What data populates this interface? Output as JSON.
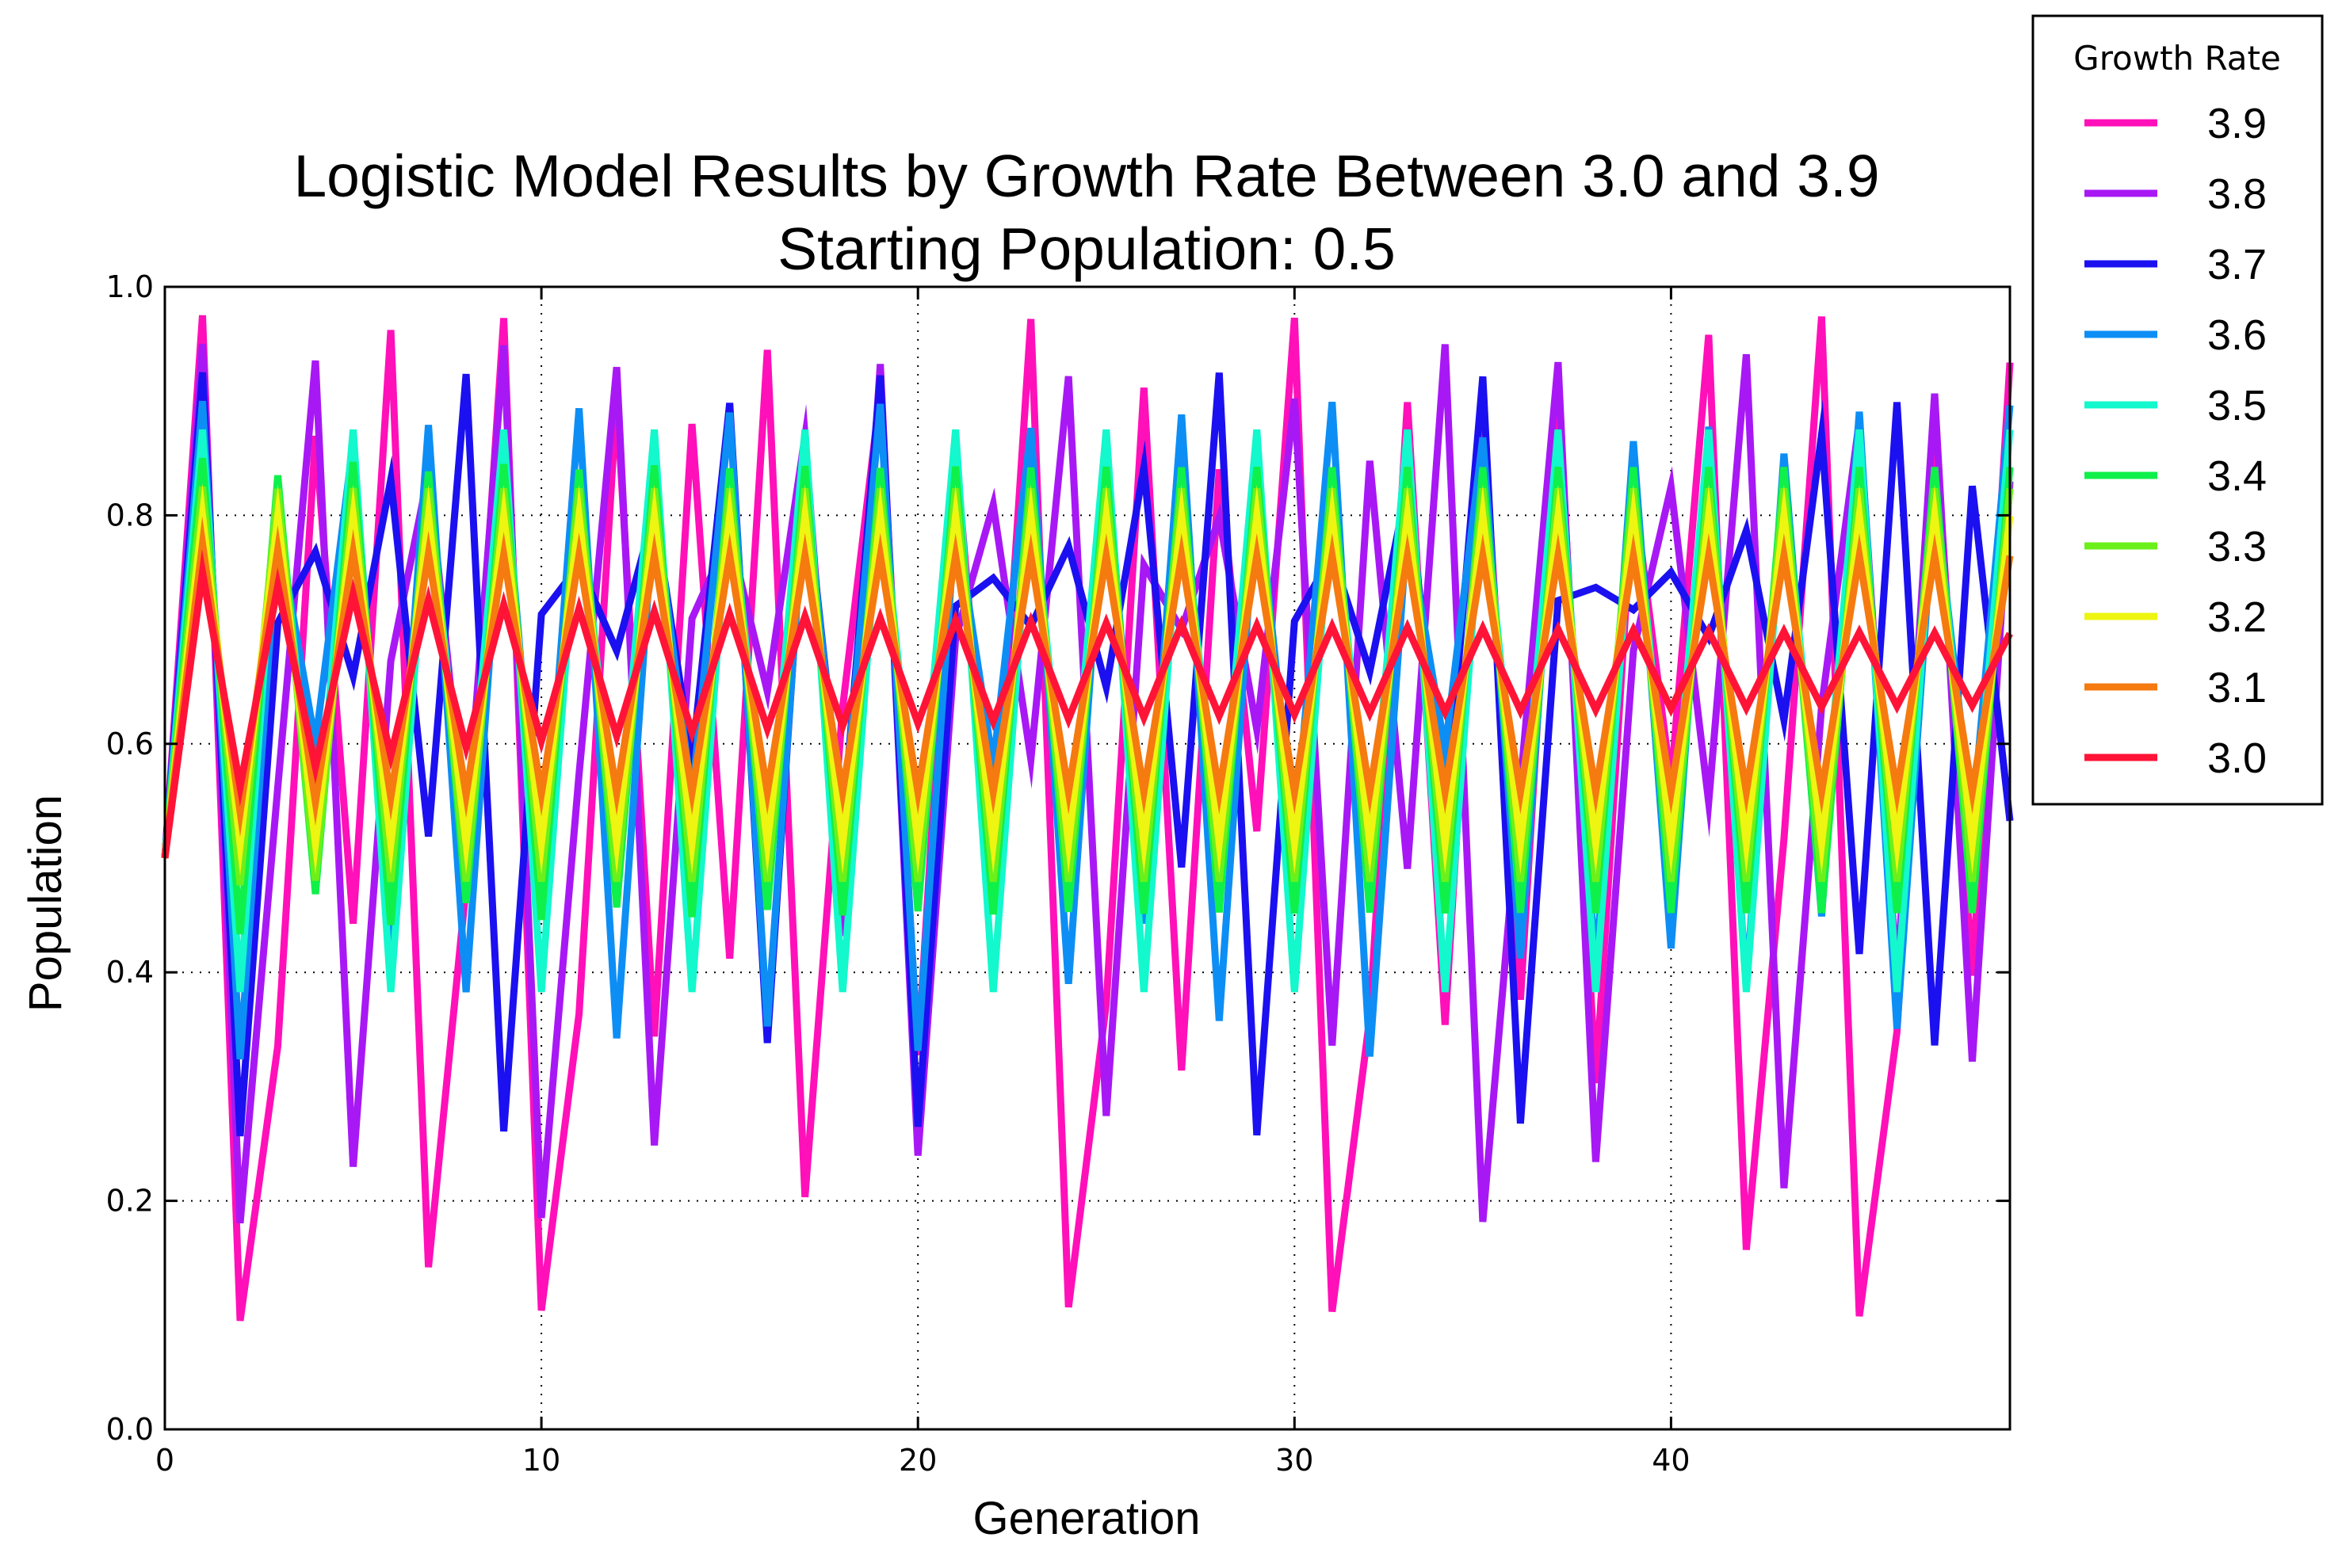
{
  "chart_data": {
    "type": "line",
    "title": "Logistic Model Results by Growth Rate Between 3.0 and 3.9",
    "subtitle": "Starting Population: 0.5",
    "xlabel": "Generation",
    "ylabel": "Population",
    "xlim": [
      0,
      49
    ],
    "ylim": [
      0.0,
      1.0
    ],
    "x_ticks": [
      "0",
      "10",
      "20",
      "30",
      "40"
    ],
    "y_ticks": [
      "0.0",
      "0.2",
      "0.4",
      "0.6",
      "0.8",
      "1.0"
    ],
    "grid": true,
    "legend": {
      "title": "Growth Rate",
      "placement": "outside top-right"
    },
    "model": {
      "starting_population": 0.5,
      "generations": 50
    },
    "series": [
      {
        "name": "3.9",
        "rate": 3.9,
        "color": "#ff10b9"
      },
      {
        "name": "3.8",
        "rate": 3.8,
        "color": "#a818f5"
      },
      {
        "name": "3.7",
        "rate": 3.7,
        "color": "#1b10f0"
      },
      {
        "name": "3.6",
        "rate": 3.6,
        "color": "#0d8ef5"
      },
      {
        "name": "3.5",
        "rate": 3.5,
        "color": "#13f8cd"
      },
      {
        "name": "3.4",
        "rate": 3.4,
        "color": "#10f04a"
      },
      {
        "name": "3.3",
        "rate": 3.3,
        "color": "#6cf01a"
      },
      {
        "name": "3.2",
        "rate": 3.2,
        "color": "#eef510"
      },
      {
        "name": "3.1",
        "rate": 3.1,
        "color": "#f57a10"
      },
      {
        "name": "3.0",
        "rate": 3.0,
        "color": "#ff1437"
      }
    ]
  }
}
